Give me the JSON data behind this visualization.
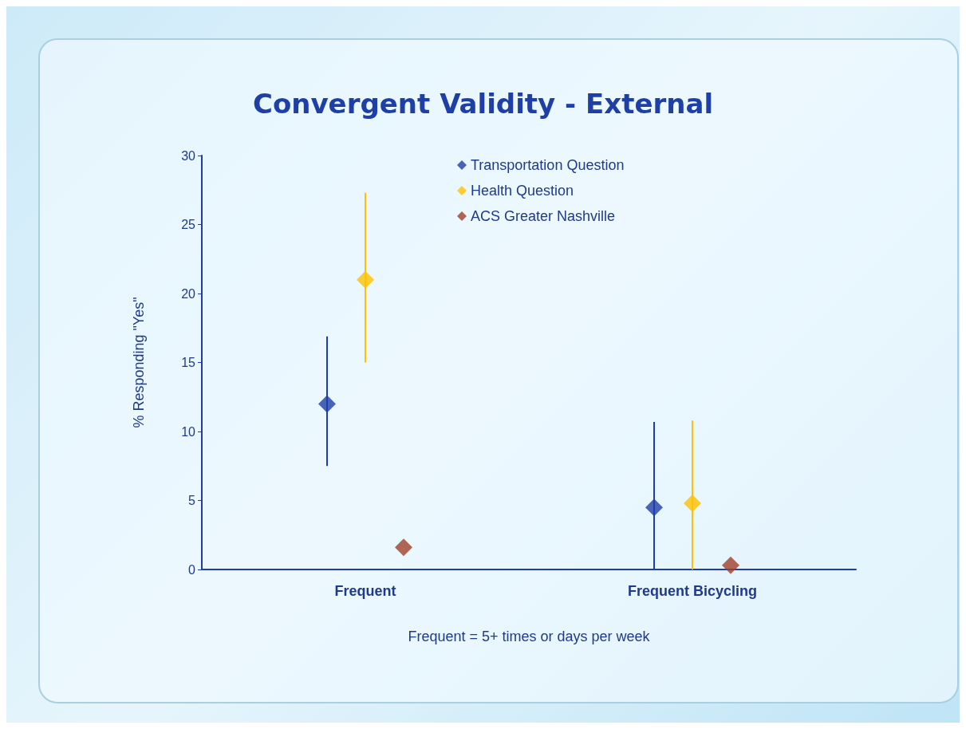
{
  "chart_data": {
    "type": "scatter",
    "title": "Convergent Validity - External",
    "ylabel": "% Responding \"Yes\"",
    "xlabel": "Frequent = 5+ times or days per week",
    "categories": [
      "Frequent",
      "Frequent Bicycling"
    ],
    "series": [
      {
        "name": "Transportation Question",
        "color": "#1f3fa8",
        "values": [
          12,
          4.5
        ],
        "errors": [
          [
            7.5,
            16.9
          ],
          [
            0,
            10.7
          ]
        ]
      },
      {
        "name": "Health Question",
        "color": "#ffc000",
        "values": [
          21,
          4.8
        ],
        "errors": [
          [
            15,
            27.3
          ],
          [
            0,
            10.8
          ]
        ]
      },
      {
        "name": "ACS Greater Nashville",
        "color": "#a0402a",
        "values": [
          1.6,
          0.3
        ],
        "errors": [
          null,
          null
        ]
      }
    ],
    "ylim": [
      0,
      30
    ],
    "yticks": [
      0,
      5,
      10,
      15,
      20,
      25,
      30
    ],
    "grid": false,
    "legend": "top",
    "marker": "diamond"
  }
}
